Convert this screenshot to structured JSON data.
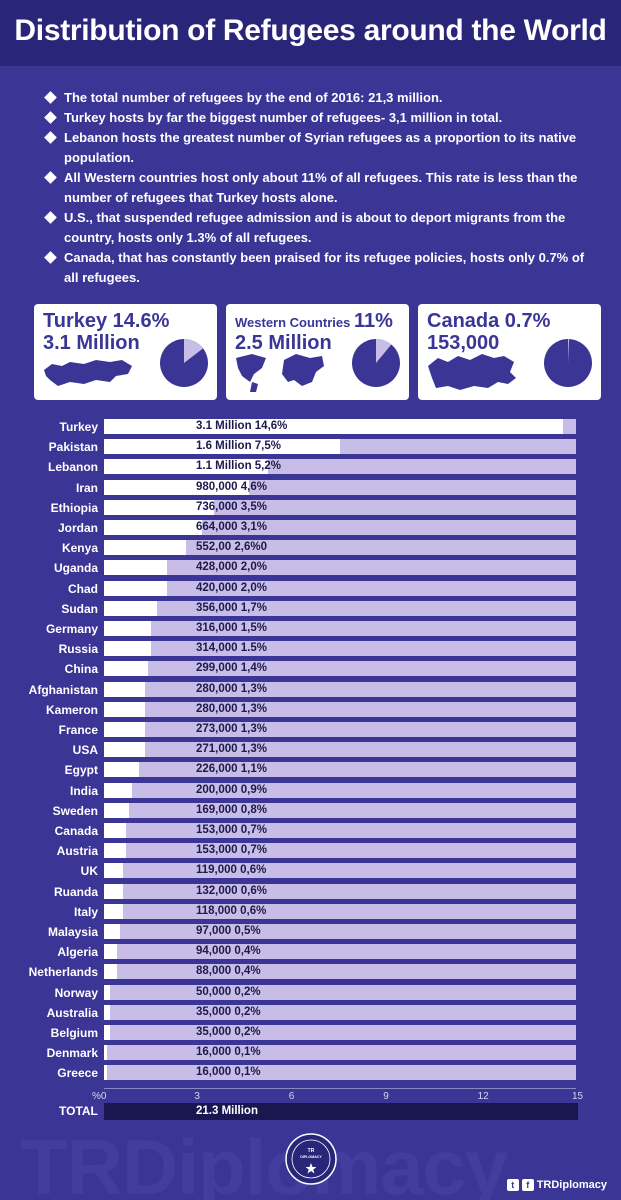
{
  "title": "Distribution of Refugees around the World",
  "bullets": [
    "The total number of refugees by the end of 2016: 21,3 million.",
    "Turkey hosts by far the biggest number of refugees- 3,1 million in total.",
    "Lebanon hosts the greatest number of Syrian refugees as a proportion to its native population.",
    "All Western countries host only about 11% of all refugees. This rate is less than the number of refugees that Turkey hosts alone.",
    "U.S., that suspended refugee admission and is about to deport migrants from the country, hosts only 1.3% of all refugees.",
    "Canada, that has constantly been praised for its refugee policies, hosts only 0.7% of all refugees."
  ],
  "cards": [
    {
      "line1": "Turkey 14.6%",
      "line1_small": "",
      "line2": "3.1 Million",
      "percent": 14.6,
      "map_icon": "turkey-map-icon"
    },
    {
      "line1": "11%",
      "line1_small": "Western Countries ",
      "line2": "2.5 Million",
      "percent": 11,
      "map_icon": "world-map-icon"
    },
    {
      "line1": "Canada 0.7%",
      "line1_small": "",
      "line2": "153,000",
      "percent": 0.7,
      "map_icon": "canada-map-icon"
    }
  ],
  "colors": {
    "background": "#3b3596",
    "title_bar": "#29267a",
    "bar_track": "#c7bde6",
    "bar_fill": "#ffffff",
    "total_bar": "#1a1750",
    "pie_fill": "#3b3596",
    "pie_slice": "#c7bde6"
  },
  "chart_data": {
    "type": "bar",
    "orientation": "horizontal",
    "categories": [
      "Turkey",
      "Pakistan",
      "Lebanon",
      "Iran",
      "Ethiopia",
      "Jordan",
      "Kenya",
      "Uganda",
      "Chad",
      "Sudan",
      "Germany",
      "Russia",
      "China",
      "Afghanistan",
      "Kameron",
      "France",
      "USA",
      "Egypt",
      "India",
      "Sweden",
      "Canada",
      "Austria",
      "UK",
      "Ruanda",
      "Italy",
      "Malaysia",
      "Algeria",
      "Netherlands",
      "Norway",
      "Australia",
      "Belgium",
      "Denmark",
      "Greece"
    ],
    "values": [
      14.6,
      7.5,
      5.2,
      4.6,
      3.5,
      3.1,
      2.6,
      2.0,
      2.0,
      1.7,
      1.5,
      1.5,
      1.4,
      1.3,
      1.3,
      1.3,
      1.3,
      1.1,
      0.9,
      0.8,
      0.7,
      0.7,
      0.6,
      0.6,
      0.6,
      0.5,
      0.4,
      0.4,
      0.2,
      0.2,
      0.2,
      0.1,
      0.1
    ],
    "value_labels": [
      "3.1 Million 14,6%",
      "1.6 Million 7,5%",
      "1.1 Million 5,2%",
      "980,000 4,6%",
      "736,000 3,5%",
      "664,000 3,1%",
      "552,00 2,6%0",
      "428,000 2,0%",
      "420,000 2,0%",
      "356,000 1,7%",
      "316,000 1,5%",
      "314,000 1.5%",
      "299,000 1,4%",
      "280,000 1,3%",
      "280,000 1,3%",
      "273,000 1,3%",
      "271,000 1,3%",
      "226,000 1,1%",
      "200,000 0,9%",
      "169,000 0,8%",
      "153,000 0,7%",
      "153,000 0,7%",
      "119,000 0,6%",
      "132,000 0,6%",
      "118,000 0,6%",
      "97,000 0,5%",
      "94,000 0,4%",
      "88,000 0,4%",
      "50,000 0,2%",
      "35,000 0,2%",
      "35,000 0,2%",
      "16,000 0,1%",
      "16,000 0,1%"
    ],
    "xlim": [
      0,
      15
    ],
    "x_ticks": [
      "%0",
      "3",
      "6",
      "9",
      "12",
      "15"
    ],
    "total_label": "TOTAL",
    "total_value": "21.3 Million"
  },
  "watermark": "TRDiplomacy",
  "seal_text": "TR DIPLOMACY",
  "footer": {
    "handle": "TRDiplomacy",
    "twitter_icon": "twitter-icon",
    "facebook_icon": "facebook-icon"
  }
}
